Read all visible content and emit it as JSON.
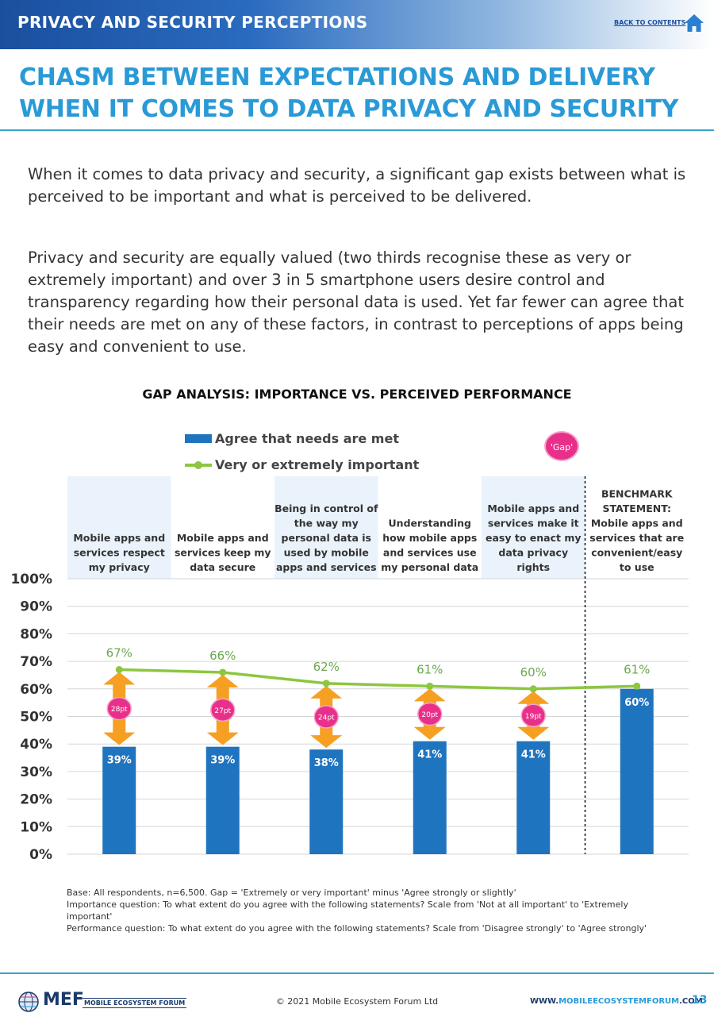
{
  "header": {
    "section_title": "PRIVACY AND SECURITY PERCEPTIONS",
    "back_link": "BACK TO CONTENTS",
    "home_icon": "home-icon"
  },
  "title": {
    "line1": "CHASM BETWEEN EXPECTATIONS AND DELIVERY",
    "line2": "WHEN IT COMES TO DATA PRIVACY AND SECURITY"
  },
  "body": {
    "p1": "When it comes to data privacy and security, a significant gap exists between what is perceived to be important and what is perceived to be delivered.",
    "p2": "Privacy and security are equally valued (two thirds recognise these as very or extremely important) and over 3 in 5 smartphone users desire control and transparency regarding how their personal data is used. Yet far fewer can agree that their needs are met on any of these factors, in contrast to perceptions of apps being easy and convenient to use."
  },
  "chart_data": {
    "type": "bar",
    "title": "GAP ANALYSIS: IMPORTANCE VS. PERCEIVED PERFORMANCE",
    "categories": [
      "Mobile apps and services respect my privacy",
      "Mobile apps and services keep my data secure",
      "Being in control of the way my personal data is used by mobile apps and services",
      "Understanding how mobile apps and services use my personal data",
      "Mobile apps and services make it easy to enact my data privacy rights",
      "BENCHMARK STATEMENT: Mobile apps and services that are convenient/easy to use"
    ],
    "category_lines": [
      [
        "Mobile apps and",
        "services respect",
        "my privacy"
      ],
      [
        "Mobile apps and",
        "services keep my",
        "data secure"
      ],
      [
        "Being in control of",
        "the way my",
        "personal data is",
        "used by mobile",
        "apps and services"
      ],
      [
        "Understanding",
        "how mobile apps",
        "and services use",
        "my personal data"
      ],
      [
        "Mobile apps and",
        "services make it",
        "easy to enact my",
        "data privacy",
        "rights"
      ],
      [
        "BENCHMARK",
        "STATEMENT:",
        "Mobile apps and",
        "services that are",
        "convenient/easy",
        "to use"
      ]
    ],
    "series": [
      {
        "name": "Agree that needs are met",
        "type": "bar",
        "color": "#1f74bf",
        "values": [
          39,
          39,
          38,
          41,
          41,
          60
        ]
      },
      {
        "name": "Very or extremely important",
        "type": "line",
        "color": "#8dc63f",
        "values": [
          67,
          66,
          62,
          61,
          60,
          61
        ]
      }
    ],
    "bar_labels": [
      "39%",
      "39%",
      "38%",
      "41%",
      "41%",
      "60%"
    ],
    "line_labels": [
      "67%",
      "66%",
      "62%",
      "61%",
      "60%",
      "61%"
    ],
    "gaps": [
      28,
      27,
      24,
      20,
      19
    ],
    "gap_labels": [
      "28pt",
      "27pt",
      "24pt",
      "20pt",
      "19pt"
    ],
    "gap_legend": "'Gap'",
    "yticks": [
      "0%",
      "10%",
      "20%",
      "30%",
      "40%",
      "50%",
      "60%",
      "70%",
      "80%",
      "90%",
      "100%"
    ],
    "ylim": [
      0,
      100
    ],
    "grid": true,
    "legend_position": "top-left",
    "colors": {
      "bar": "#1f74bf",
      "line": "#8dc63f",
      "gap_badge": "#e8308a",
      "arrow": "#f5a023",
      "header_shade": "#eaf3fb"
    }
  },
  "footnote": {
    "line1": "Base: All respondents, n=6,500. Gap = 'Extremely or very important' minus 'Agree strongly or slightly'",
    "line2": "Importance question: To what extent do you agree with the following statements? Scale from 'Not at all important' to 'Extremely important'",
    "line3": "Performance question: To what extent do you agree with the following statements? Scale from 'Disagree strongly' to 'Agree strongly'"
  },
  "footer": {
    "logo_text": "MEF",
    "logo_sub": "MOBILE ECOSYSTEM FORUM",
    "copyright": "© 2021 Mobile Ecosystem Forum Ltd",
    "url_pre": "WWW.",
    "url_hl": "MOBILEECOSYSTEMFORUM",
    "url_post": ".COM",
    "page": "13"
  }
}
